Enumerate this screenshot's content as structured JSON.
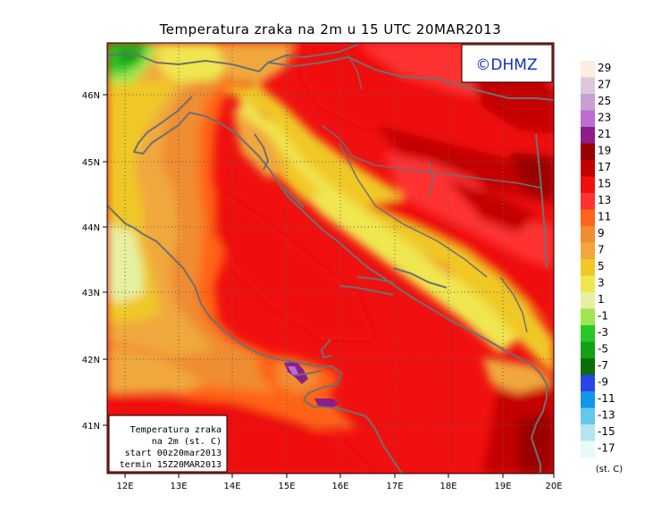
{
  "map": {
    "title": "Temperatura zraka na 2m u 15 UTC 20MAR2013",
    "watermark": "©DHMZ",
    "lon_labels": [
      "12E",
      "13E",
      "14E",
      "15E",
      "16E",
      "17E",
      "18E",
      "19E",
      "20E"
    ],
    "lat_labels": [
      "46N",
      "45N",
      "44N",
      "43N",
      "42N",
      "41N"
    ],
    "info_box": {
      "line1": "Temperatura zraka",
      "line2": "na 2m (st. C)",
      "line3": "start 00z20mar2013",
      "line4": "termin 15Z20MAR2013"
    }
  },
  "colorbar": {
    "labels": [
      "29",
      "27",
      "25",
      "23",
      "21",
      "19",
      "17",
      "15",
      "13",
      "11",
      "9",
      "7",
      "5",
      "3",
      "1",
      "-1",
      "-3",
      "-5",
      "-7",
      "-9",
      "-11",
      "-13",
      "-15",
      "-17"
    ],
    "unit": "(st. C)",
    "colors": [
      "#fbeede",
      "#dcc8dc",
      "#c8a0d2",
      "#bc6cd2",
      "#8c1e8c",
      "#9a0000",
      "#c40000",
      "#f01010",
      "#ff3232",
      "#ff6418",
      "#f08c32",
      "#f0a83c",
      "#f0c828",
      "#f0e650",
      "#e6f0a0",
      "#a0e650",
      "#28c828",
      "#14a014",
      "#0a6e0a",
      "#2846e6",
      "#1496e6",
      "#64c8e6",
      "#b4e6f0",
      "#e6fafa"
    ]
  }
}
